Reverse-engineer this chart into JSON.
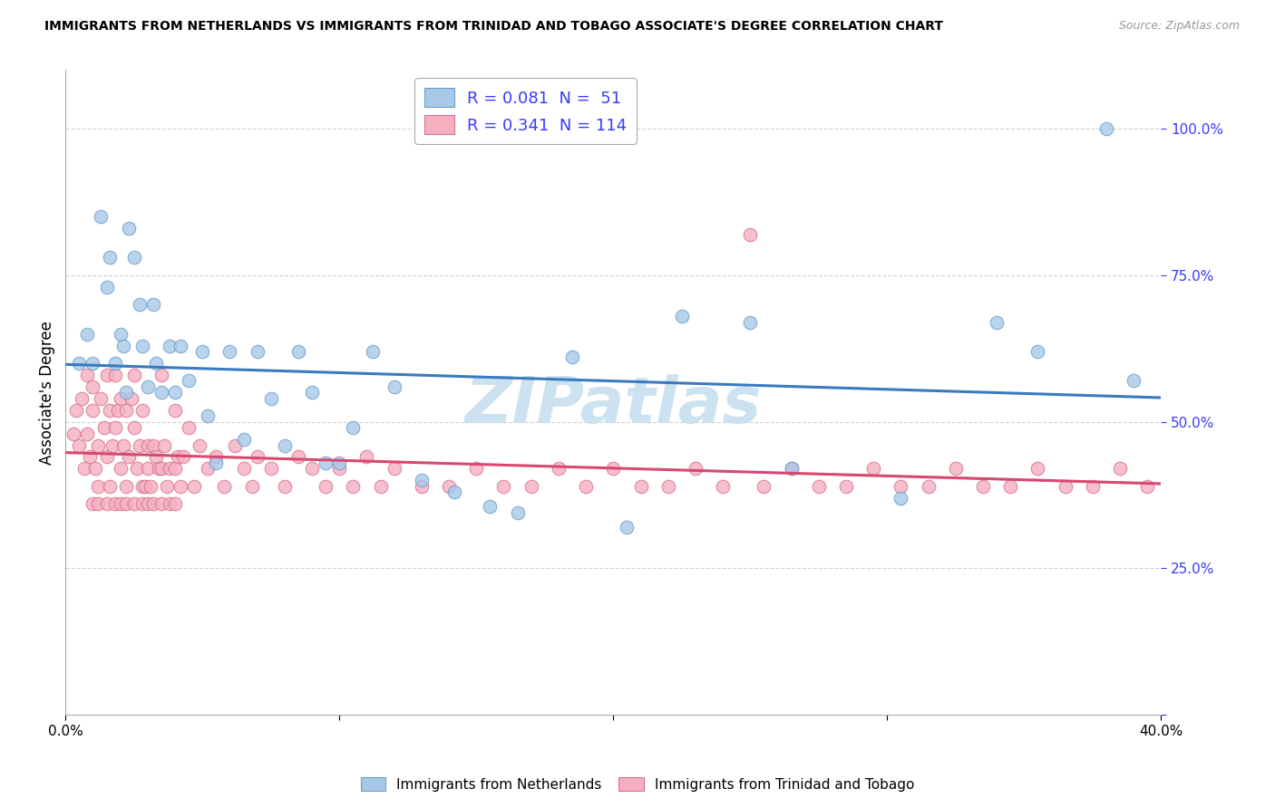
{
  "title": "IMMIGRANTS FROM NETHERLANDS VS IMMIGRANTS FROM TRINIDAD AND TOBAGO ASSOCIATE'S DEGREE CORRELATION CHART",
  "source": "Source: ZipAtlas.com",
  "ylabel_label": "Associate's Degree",
  "xlim": [
    0.0,
    0.4
  ],
  "ylim": [
    0.0,
    1.1
  ],
  "xtick_vals": [
    0.0,
    0.1,
    0.2,
    0.3,
    0.4
  ],
  "xtick_labels": [
    "0.0%",
    "",
    "",
    "",
    "40.0%"
  ],
  "ytick_vals": [
    0.0,
    0.25,
    0.5,
    0.75,
    1.0
  ],
  "ytick_labels": [
    "",
    "25.0%",
    "50.0%",
    "75.0%",
    "100.0%"
  ],
  "netherlands_color": "#a8c8e8",
  "netherlands_edge": "#6aa0cc",
  "trinidad_color": "#f5b0c0",
  "trinidad_edge": "#d87090",
  "netherlands_line_color": "#3a7abf",
  "trinidad_line_color": "#d84870",
  "trend_ext_color": "#c0c8d0",
  "watermark": "ZIPatlas",
  "watermark_color": "#c8dff0",
  "legend_blue_text": "R = 0.081  N =  51",
  "legend_pink_text": "R = 0.341  N = 114",
  "legend_text_color": "#3a3aff",
  "neth_x": [
    0.005,
    0.008,
    0.01,
    0.013,
    0.015,
    0.016,
    0.018,
    0.02,
    0.021,
    0.022,
    0.023,
    0.025,
    0.027,
    0.028,
    0.03,
    0.032,
    0.033,
    0.035,
    0.038,
    0.04,
    0.042,
    0.045,
    0.05,
    0.052,
    0.055,
    0.06,
    0.065,
    0.07,
    0.075,
    0.08,
    0.085,
    0.09,
    0.095,
    0.1,
    0.105,
    0.112,
    0.12,
    0.13,
    0.142,
    0.155,
    0.165,
    0.185,
    0.205,
    0.225,
    0.25,
    0.265,
    0.305,
    0.34,
    0.355,
    0.38,
    0.39
  ],
  "neth_y": [
    0.6,
    0.65,
    0.6,
    0.85,
    0.73,
    0.78,
    0.6,
    0.65,
    0.63,
    0.55,
    0.83,
    0.78,
    0.7,
    0.63,
    0.56,
    0.7,
    0.6,
    0.55,
    0.63,
    0.55,
    0.63,
    0.57,
    0.62,
    0.51,
    0.43,
    0.62,
    0.47,
    0.62,
    0.54,
    0.46,
    0.62,
    0.55,
    0.43,
    0.43,
    0.49,
    0.62,
    0.56,
    0.4,
    0.38,
    0.355,
    0.345,
    0.61,
    0.32,
    0.68,
    0.67,
    0.42,
    0.37,
    0.67,
    0.62,
    1.0,
    0.57
  ],
  "trin_x": [
    0.003,
    0.004,
    0.005,
    0.006,
    0.007,
    0.008,
    0.008,
    0.009,
    0.01,
    0.01,
    0.011,
    0.012,
    0.012,
    0.013,
    0.014,
    0.015,
    0.015,
    0.016,
    0.016,
    0.017,
    0.018,
    0.018,
    0.019,
    0.02,
    0.02,
    0.021,
    0.022,
    0.022,
    0.023,
    0.024,
    0.025,
    0.025,
    0.026,
    0.027,
    0.028,
    0.028,
    0.029,
    0.03,
    0.03,
    0.031,
    0.032,
    0.033,
    0.034,
    0.035,
    0.035,
    0.036,
    0.037,
    0.038,
    0.04,
    0.04,
    0.041,
    0.042,
    0.043,
    0.045,
    0.047,
    0.049,
    0.052,
    0.055,
    0.058,
    0.062,
    0.065,
    0.068,
    0.07,
    0.075,
    0.08,
    0.085,
    0.09,
    0.095,
    0.1,
    0.105,
    0.11,
    0.115,
    0.12,
    0.13,
    0.14,
    0.15,
    0.16,
    0.17,
    0.18,
    0.19,
    0.2,
    0.21,
    0.22,
    0.23,
    0.24,
    0.255,
    0.265,
    0.275,
    0.285,
    0.295,
    0.305,
    0.315,
    0.325,
    0.335,
    0.345,
    0.355,
    0.365,
    0.375,
    0.385,
    0.395,
    0.01,
    0.012,
    0.015,
    0.018,
    0.02,
    0.022,
    0.025,
    0.028,
    0.03,
    0.032,
    0.035,
    0.038,
    0.04,
    0.25
  ],
  "trin_y": [
    0.48,
    0.52,
    0.46,
    0.54,
    0.42,
    0.58,
    0.48,
    0.44,
    0.56,
    0.52,
    0.42,
    0.46,
    0.39,
    0.54,
    0.49,
    0.58,
    0.44,
    0.52,
    0.39,
    0.46,
    0.58,
    0.49,
    0.52,
    0.54,
    0.42,
    0.46,
    0.52,
    0.39,
    0.44,
    0.54,
    0.58,
    0.49,
    0.42,
    0.46,
    0.39,
    0.52,
    0.39,
    0.46,
    0.42,
    0.39,
    0.46,
    0.44,
    0.42,
    0.58,
    0.42,
    0.46,
    0.39,
    0.42,
    0.52,
    0.42,
    0.44,
    0.39,
    0.44,
    0.49,
    0.39,
    0.46,
    0.42,
    0.44,
    0.39,
    0.46,
    0.42,
    0.39,
    0.44,
    0.42,
    0.39,
    0.44,
    0.42,
    0.39,
    0.42,
    0.39,
    0.44,
    0.39,
    0.42,
    0.39,
    0.39,
    0.42,
    0.39,
    0.39,
    0.42,
    0.39,
    0.42,
    0.39,
    0.39,
    0.42,
    0.39,
    0.39,
    0.42,
    0.39,
    0.39,
    0.42,
    0.39,
    0.39,
    0.42,
    0.39,
    0.39,
    0.42,
    0.39,
    0.39,
    0.42,
    0.39,
    0.36,
    0.36,
    0.36,
    0.36,
    0.36,
    0.36,
    0.36,
    0.36,
    0.36,
    0.36,
    0.36,
    0.36,
    0.36,
    0.82
  ]
}
